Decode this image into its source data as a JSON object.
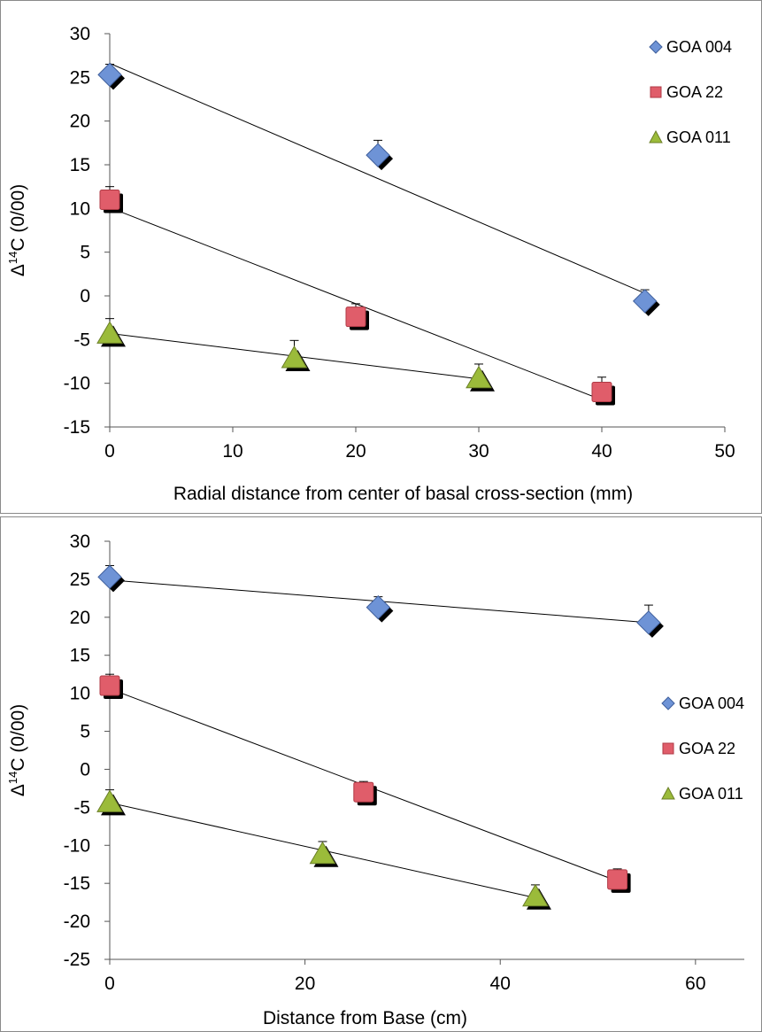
{
  "colors": {
    "GOA 004": "#6e93d6",
    "GOA 22": "#e05d6a",
    "GOA 011": "#9bbb3a"
  },
  "markers": {
    "GOA 004": "diamond",
    "GOA 22": "square",
    "GOA 011": "triangle"
  },
  "chart_data": [
    {
      "type": "scatter",
      "title": "",
      "xlabel": "Radial distance from center of basal cross-section (mm)",
      "ylabel_prefix": "Δ",
      "ylabel_sup": "14",
      "ylabel_suffix": "C (0/00)",
      "xlim": [
        0,
        50
      ],
      "ylim": [
        -15,
        30
      ],
      "xticks": [
        0,
        10,
        20,
        30,
        40,
        50
      ],
      "yticks": [
        -15,
        -10,
        -5,
        0,
        5,
        10,
        15,
        20,
        25,
        30
      ],
      "legend_position": "top-right",
      "trendlines": true,
      "series": [
        {
          "name": "GOA 004",
          "x": [
            0,
            21.8,
            43.5
          ],
          "y": [
            25.3,
            16.1,
            -0.6
          ],
          "err": [
            1.2,
            1.7,
            1.3
          ],
          "trend": [
            [
              0,
              26.6
            ],
            [
              43.5,
              0.3
            ]
          ]
        },
        {
          "name": "GOA 22",
          "x": [
            0,
            20,
            40
          ],
          "y": [
            11.0,
            -2.4,
            -11.0
          ],
          "err": [
            1.5,
            1.5,
            1.7
          ],
          "trend": [
            [
              0,
              10.1
            ],
            [
              40,
              -11.9
            ]
          ]
        },
        {
          "name": "GOA 011",
          "x": [
            0,
            15,
            30
          ],
          "y": [
            -4.3,
            -7.1,
            -9.4
          ],
          "err": [
            1.7,
            2.0,
            1.6
          ],
          "trend": [
            [
              0,
              -4.3
            ],
            [
              30,
              -9.5
            ]
          ]
        }
      ]
    },
    {
      "type": "scatter",
      "title": "",
      "xlabel": "Distance from Base (cm)",
      "ylabel_prefix": "Δ",
      "ylabel_sup": "14",
      "ylabel_suffix": "C (0/00)",
      "xlim": [
        0,
        65
      ],
      "ylim": [
        -25,
        30
      ],
      "xticks": [
        0,
        20,
        40,
        60
      ],
      "yticks": [
        -25,
        -20,
        -15,
        -10,
        -5,
        0,
        5,
        10,
        15,
        20,
        25,
        30
      ],
      "legend_position": "right",
      "trendlines": true,
      "series": [
        {
          "name": "GOA 004",
          "x": [
            0,
            27.5,
            55.2
          ],
          "y": [
            25.3,
            21.3,
            19.3
          ],
          "err": [
            1.5,
            1.4,
            2.3
          ],
          "trend": [
            [
              0,
              24.9
            ],
            [
              55.2,
              19.3
            ]
          ]
        },
        {
          "name": "GOA 22",
          "x": [
            0,
            26,
            52
          ],
          "y": [
            11.0,
            -3.0,
            -14.5
          ],
          "err": [
            1.5,
            1.4,
            1.4
          ],
          "trend": [
            [
              0,
              10.6
            ],
            [
              52,
              -14.7
            ]
          ]
        },
        {
          "name": "GOA 011",
          "x": [
            0,
            21.8,
            43.6
          ],
          "y": [
            -4.3,
            -11.1,
            -16.7
          ],
          "err": [
            1.6,
            1.6,
            1.5
          ],
          "trend": [
            [
              0,
              -4.4
            ],
            [
              43.6,
              -16.9
            ]
          ]
        }
      ]
    }
  ]
}
